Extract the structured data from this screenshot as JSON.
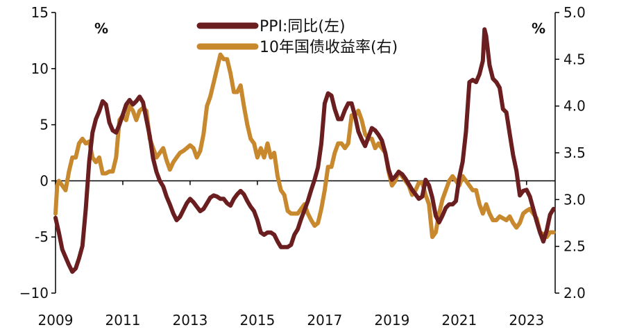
{
  "chart_data": {
    "type": "line",
    "title": "",
    "xlabel": "",
    "x_ticks": [
      "2009",
      "2011",
      "2013",
      "2015",
      "2017",
      "2019",
      "2021",
      "2023"
    ],
    "x_range": [
      2009.0,
      2023.85
    ],
    "left_axis": {
      "unit": "%",
      "ylim": [
        -10,
        15
      ],
      "ticks": [
        "15",
        "10",
        "5",
        "0",
        "-5",
        "−10"
      ]
    },
    "right_axis": {
      "unit": "%",
      "ylim": [
        2.0,
        5.0
      ],
      "ticks": [
        "5.0",
        "4.5",
        "4.0",
        "3.5",
        "3.0",
        "2.5",
        "2.0"
      ]
    },
    "zero_line": 0,
    "grid": false,
    "legend_position": "top-center",
    "series": [
      {
        "name": "PPI:同比(左)",
        "axis": "left",
        "color": "#6b1e1f",
        "points": [
          [
            2009.0,
            -3.3
          ],
          [
            2009.1,
            -4.6
          ],
          [
            2009.2,
            -6.1
          ],
          [
            2009.3,
            -6.8
          ],
          [
            2009.4,
            -7.5
          ],
          [
            2009.5,
            -8.1
          ],
          [
            2009.6,
            -7.8
          ],
          [
            2009.7,
            -6.9
          ],
          [
            2009.8,
            -5.8
          ],
          [
            2009.9,
            -2.5
          ],
          [
            2010.0,
            1.7
          ],
          [
            2010.1,
            4.3
          ],
          [
            2010.2,
            5.5
          ],
          [
            2010.3,
            6.2
          ],
          [
            2010.4,
            7.1
          ],
          [
            2010.5,
            6.8
          ],
          [
            2010.6,
            5.2
          ],
          [
            2010.7,
            4.5
          ],
          [
            2010.8,
            4.3
          ],
          [
            2010.9,
            5.0
          ],
          [
            2011.0,
            5.9
          ],
          [
            2011.1,
            6.8
          ],
          [
            2011.2,
            7.2
          ],
          [
            2011.3,
            6.8
          ],
          [
            2011.4,
            7.1
          ],
          [
            2011.5,
            7.5
          ],
          [
            2011.6,
            7.0
          ],
          [
            2011.7,
            5.5
          ],
          [
            2011.8,
            4.0
          ],
          [
            2011.9,
            2.0
          ],
          [
            2012.0,
            0.8
          ],
          [
            2012.1,
            0.0
          ],
          [
            2012.2,
            -0.5
          ],
          [
            2012.3,
            -1.4
          ],
          [
            2012.4,
            -2.1
          ],
          [
            2012.5,
            -2.9
          ],
          [
            2012.6,
            -3.5
          ],
          [
            2012.7,
            -3.2
          ],
          [
            2012.8,
            -2.6
          ],
          [
            2012.9,
            -2.0
          ],
          [
            2013.0,
            -1.6
          ],
          [
            2013.1,
            -1.9
          ],
          [
            2013.2,
            -2.3
          ],
          [
            2013.3,
            -2.7
          ],
          [
            2013.4,
            -2.5
          ],
          [
            2013.5,
            -2.0
          ],
          [
            2013.6,
            -1.5
          ],
          [
            2013.7,
            -1.3
          ],
          [
            2013.8,
            -1.4
          ],
          [
            2013.9,
            -1.6
          ],
          [
            2014.0,
            -1.6
          ],
          [
            2014.1,
            -2.0
          ],
          [
            2014.2,
            -2.2
          ],
          [
            2014.3,
            -1.6
          ],
          [
            2014.4,
            -1.2
          ],
          [
            2014.5,
            -0.9
          ],
          [
            2014.6,
            -1.2
          ],
          [
            2014.7,
            -1.8
          ],
          [
            2014.8,
            -2.3
          ],
          [
            2014.9,
            -2.7
          ],
          [
            2015.0,
            -3.5
          ],
          [
            2015.1,
            -4.6
          ],
          [
            2015.2,
            -4.8
          ],
          [
            2015.3,
            -4.6
          ],
          [
            2015.4,
            -4.6
          ],
          [
            2015.5,
            -4.8
          ],
          [
            2015.6,
            -5.4
          ],
          [
            2015.7,
            -5.9
          ],
          [
            2015.8,
            -5.9
          ],
          [
            2015.9,
            -5.9
          ],
          [
            2016.0,
            -5.7
          ],
          [
            2016.1,
            -4.8
          ],
          [
            2016.2,
            -4.3
          ],
          [
            2016.3,
            -3.4
          ],
          [
            2016.4,
            -2.6
          ],
          [
            2016.5,
            -1.8
          ],
          [
            2016.6,
            -0.8
          ],
          [
            2016.7,
            0.1
          ],
          [
            2016.8,
            1.2
          ],
          [
            2016.9,
            3.3
          ],
          [
            2017.0,
            6.9
          ],
          [
            2017.1,
            7.8
          ],
          [
            2017.2,
            7.6
          ],
          [
            2017.3,
            6.4
          ],
          [
            2017.4,
            5.5
          ],
          [
            2017.5,
            5.5
          ],
          [
            2017.6,
            6.3
          ],
          [
            2017.7,
            6.9
          ],
          [
            2017.8,
            6.9
          ],
          [
            2017.9,
            5.8
          ],
          [
            2018.0,
            4.4
          ],
          [
            2018.1,
            3.7
          ],
          [
            2018.2,
            3.1
          ],
          [
            2018.3,
            3.9
          ],
          [
            2018.4,
            4.7
          ],
          [
            2018.5,
            4.5
          ],
          [
            2018.6,
            4.1
          ],
          [
            2018.7,
            3.6
          ],
          [
            2018.8,
            2.5
          ],
          [
            2018.9,
            1.0
          ],
          [
            2019.0,
            0.1
          ],
          [
            2019.1,
            0.4
          ],
          [
            2019.2,
            0.8
          ],
          [
            2019.3,
            0.6
          ],
          [
            2019.4,
            0.2
          ],
          [
            2019.5,
            -0.3
          ],
          [
            2019.6,
            -0.8
          ],
          [
            2019.7,
            -1.2
          ],
          [
            2019.8,
            -1.6
          ],
          [
            2019.9,
            -1.4
          ],
          [
            2020.0,
            0.1
          ],
          [
            2020.1,
            -0.4
          ],
          [
            2020.2,
            -1.5
          ],
          [
            2020.3,
            -3.1
          ],
          [
            2020.4,
            -3.7
          ],
          [
            2020.5,
            -3.1
          ],
          [
            2020.6,
            -2.4
          ],
          [
            2020.7,
            -2.1
          ],
          [
            2020.8,
            -2.1
          ],
          [
            2020.9,
            -1.8
          ],
          [
            2021.0,
            0.3
          ],
          [
            2021.1,
            1.7
          ],
          [
            2021.2,
            4.4
          ],
          [
            2021.3,
            8.8
          ],
          [
            2021.4,
            9.0
          ],
          [
            2021.5,
            8.8
          ],
          [
            2021.6,
            9.5
          ],
          [
            2021.7,
            10.7
          ],
          [
            2021.75,
            13.5
          ],
          [
            2021.8,
            12.9
          ],
          [
            2021.9,
            10.3
          ],
          [
            2022.0,
            9.1
          ],
          [
            2022.1,
            8.8
          ],
          [
            2022.2,
            8.3
          ],
          [
            2022.3,
            6.4
          ],
          [
            2022.4,
            6.1
          ],
          [
            2022.5,
            4.2
          ],
          [
            2022.6,
            2.3
          ],
          [
            2022.7,
            0.9
          ],
          [
            2022.8,
            -1.3
          ],
          [
            2022.9,
            -0.9
          ],
          [
            2023.0,
            -0.8
          ],
          [
            2023.1,
            -1.4
          ],
          [
            2023.2,
            -2.5
          ],
          [
            2023.3,
            -3.6
          ],
          [
            2023.4,
            -4.6
          ],
          [
            2023.5,
            -5.4
          ],
          [
            2023.6,
            -4.4
          ],
          [
            2023.7,
            -3.0
          ],
          [
            2023.8,
            -2.5
          ]
        ]
      },
      {
        "name": "10年国债收益率(右)",
        "axis": "right",
        "color": "#c8882e",
        "points": [
          [
            2009.0,
            2.85
          ],
          [
            2009.05,
            3.15
          ],
          [
            2009.1,
            3.2
          ],
          [
            2009.2,
            3.15
          ],
          [
            2009.3,
            3.1
          ],
          [
            2009.4,
            3.3
          ],
          [
            2009.5,
            3.45
          ],
          [
            2009.6,
            3.45
          ],
          [
            2009.7,
            3.6
          ],
          [
            2009.8,
            3.65
          ],
          [
            2009.9,
            3.6
          ],
          [
            2010.0,
            3.62
          ],
          [
            2010.1,
            3.45
          ],
          [
            2010.2,
            3.4
          ],
          [
            2010.3,
            3.45
          ],
          [
            2010.4,
            3.28
          ],
          [
            2010.5,
            3.28
          ],
          [
            2010.6,
            3.3
          ],
          [
            2010.7,
            3.3
          ],
          [
            2010.8,
            3.45
          ],
          [
            2010.9,
            3.85
          ],
          [
            2011.0,
            3.9
          ],
          [
            2011.1,
            3.85
          ],
          [
            2011.2,
            4.0
          ],
          [
            2011.3,
            3.95
          ],
          [
            2011.4,
            3.85
          ],
          [
            2011.5,
            3.95
          ],
          [
            2011.6,
            3.98
          ],
          [
            2011.7,
            3.95
          ],
          [
            2011.8,
            3.65
          ],
          [
            2011.9,
            3.55
          ],
          [
            2012.0,
            3.45
          ],
          [
            2012.1,
            3.5
          ],
          [
            2012.2,
            3.55
          ],
          [
            2012.3,
            3.42
          ],
          [
            2012.4,
            3.32
          ],
          [
            2012.5,
            3.4
          ],
          [
            2012.6,
            3.45
          ],
          [
            2012.7,
            3.5
          ],
          [
            2012.8,
            3.52
          ],
          [
            2012.9,
            3.55
          ],
          [
            2013.0,
            3.58
          ],
          [
            2013.1,
            3.55
          ],
          [
            2013.2,
            3.45
          ],
          [
            2013.3,
            3.52
          ],
          [
            2013.4,
            3.7
          ],
          [
            2013.5,
            4.0
          ],
          [
            2013.6,
            4.1
          ],
          [
            2013.7,
            4.25
          ],
          [
            2013.8,
            4.4
          ],
          [
            2013.9,
            4.55
          ],
          [
            2014.0,
            4.5
          ],
          [
            2014.1,
            4.5
          ],
          [
            2014.2,
            4.35
          ],
          [
            2014.3,
            4.15
          ],
          [
            2014.4,
            4.15
          ],
          [
            2014.5,
            4.22
          ],
          [
            2014.6,
            4.0
          ],
          [
            2014.7,
            3.8
          ],
          [
            2014.8,
            3.65
          ],
          [
            2014.9,
            3.6
          ],
          [
            2015.0,
            3.45
          ],
          [
            2015.1,
            3.55
          ],
          [
            2015.2,
            3.45
          ],
          [
            2015.3,
            3.6
          ],
          [
            2015.4,
            3.45
          ],
          [
            2015.5,
            3.5
          ],
          [
            2015.6,
            3.25
          ],
          [
            2015.7,
            3.1
          ],
          [
            2015.8,
            3.05
          ],
          [
            2015.9,
            2.88
          ],
          [
            2016.0,
            2.85
          ],
          [
            2016.1,
            2.85
          ],
          [
            2016.2,
            2.85
          ],
          [
            2016.3,
            2.9
          ],
          [
            2016.4,
            2.95
          ],
          [
            2016.5,
            2.85
          ],
          [
            2016.6,
            2.78
          ],
          [
            2016.7,
            2.72
          ],
          [
            2016.8,
            2.75
          ],
          [
            2016.9,
            2.9
          ],
          [
            2017.0,
            3.1
          ],
          [
            2017.1,
            3.35
          ],
          [
            2017.2,
            3.35
          ],
          [
            2017.3,
            3.5
          ],
          [
            2017.4,
            3.6
          ],
          [
            2017.5,
            3.6
          ],
          [
            2017.6,
            3.55
          ],
          [
            2017.7,
            3.6
          ],
          [
            2017.8,
            3.9
          ],
          [
            2017.9,
            3.9
          ],
          [
            2018.0,
            3.95
          ],
          [
            2018.1,
            3.85
          ],
          [
            2018.2,
            3.7
          ],
          [
            2018.3,
            3.65
          ],
          [
            2018.4,
            3.65
          ],
          [
            2018.5,
            3.55
          ],
          [
            2018.6,
            3.6
          ],
          [
            2018.7,
            3.55
          ],
          [
            2018.8,
            3.5
          ],
          [
            2018.9,
            3.3
          ],
          [
            2019.0,
            3.15
          ],
          [
            2019.1,
            3.2
          ],
          [
            2019.2,
            3.3
          ],
          [
            2019.3,
            3.25
          ],
          [
            2019.4,
            3.2
          ],
          [
            2019.5,
            3.15
          ],
          [
            2019.6,
            3.05
          ],
          [
            2019.7,
            3.1
          ],
          [
            2019.8,
            3.18
          ],
          [
            2019.9,
            3.18
          ],
          [
            2020.0,
            3.05
          ],
          [
            2020.1,
            2.95
          ],
          [
            2020.2,
            2.6
          ],
          [
            2020.3,
            2.65
          ],
          [
            2020.4,
            2.85
          ],
          [
            2020.5,
            3.0
          ],
          [
            2020.6,
            3.1
          ],
          [
            2020.7,
            3.2
          ],
          [
            2020.8,
            3.25
          ],
          [
            2020.9,
            3.2
          ],
          [
            2021.0,
            3.15
          ],
          [
            2021.1,
            3.25
          ],
          [
            2021.2,
            3.2
          ],
          [
            2021.3,
            3.15
          ],
          [
            2021.4,
            3.1
          ],
          [
            2021.5,
            3.1
          ],
          [
            2021.6,
            2.95
          ],
          [
            2021.7,
            2.85
          ],
          [
            2021.8,
            2.95
          ],
          [
            2021.9,
            2.85
          ],
          [
            2022.0,
            2.78
          ],
          [
            2022.1,
            2.78
          ],
          [
            2022.2,
            2.82
          ],
          [
            2022.3,
            2.8
          ],
          [
            2022.4,
            2.78
          ],
          [
            2022.5,
            2.82
          ],
          [
            2022.6,
            2.75
          ],
          [
            2022.7,
            2.7
          ],
          [
            2022.8,
            2.75
          ],
          [
            2022.9,
            2.85
          ],
          [
            2023.0,
            2.88
          ],
          [
            2023.1,
            2.9
          ],
          [
            2023.2,
            2.85
          ],
          [
            2023.3,
            2.8
          ],
          [
            2023.4,
            2.65
          ],
          [
            2023.5,
            2.63
          ],
          [
            2023.6,
            2.6
          ],
          [
            2023.7,
            2.65
          ],
          [
            2023.8,
            2.65
          ]
        ]
      }
    ]
  }
}
